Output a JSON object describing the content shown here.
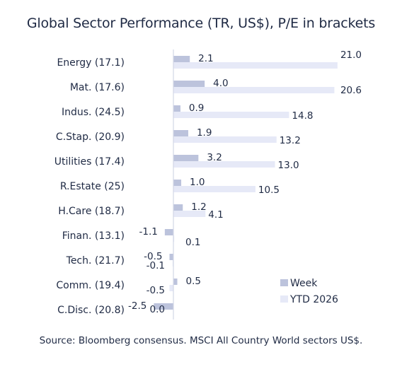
{
  "title": "Global Sector Performance (TR, US$), P/E in brackets",
  "source": "Source: Bloomberg consensus. MSCI All Country World sectors US$.",
  "colors": {
    "week": "#bcc3dc",
    "ytd": "#e6e9f7",
    "axis": "#d3d7e6",
    "text": "#1f2a44"
  },
  "chart_data": {
    "type": "bar",
    "orientation": "horizontal",
    "title": "Global Sector Performance (TR, US$), P/E in brackets",
    "categories": [
      "Energy (17.1)",
      "Mat. (17.6)",
      "Indus. (24.5)",
      "C.Stap. (20.9)",
      "Utilities (17.4)",
      "R.Estate (25)",
      "H.Care (18.7)",
      "Finan. (13.1)",
      "Tech. (21.7)",
      "Comm. (19.4)",
      "C.Disc. (20.8)"
    ],
    "series": [
      {
        "name": "Week",
        "color": "#bcc3dc",
        "values": [
          2.1,
          4.0,
          0.9,
          1.9,
          3.2,
          1.0,
          1.2,
          -1.1,
          -0.5,
          0.5,
          -2.5
        ],
        "labels": [
          "2.1",
          "4.0",
          "0.9",
          "1.9",
          "3.2",
          "1.0",
          "1.2",
          "-1.1",
          "-0.5",
          "0.5",
          "-2.5"
        ]
      },
      {
        "name": "YTD 2026",
        "color": "#e6e9f7",
        "values": [
          21.0,
          20.6,
          14.8,
          13.2,
          13.0,
          10.5,
          4.1,
          0.1,
          -0.1,
          -0.5,
          0.0
        ],
        "labels": [
          "21.0",
          "20.6",
          "14.8",
          "13.2",
          "13.0",
          "10.5",
          "4.1",
          "0.1",
          "-0.1",
          "-0.5",
          "0.0"
        ]
      }
    ],
    "xlim": [
      -2.5,
      21.0
    ],
    "grid": false,
    "legend": "bottom-right"
  }
}
